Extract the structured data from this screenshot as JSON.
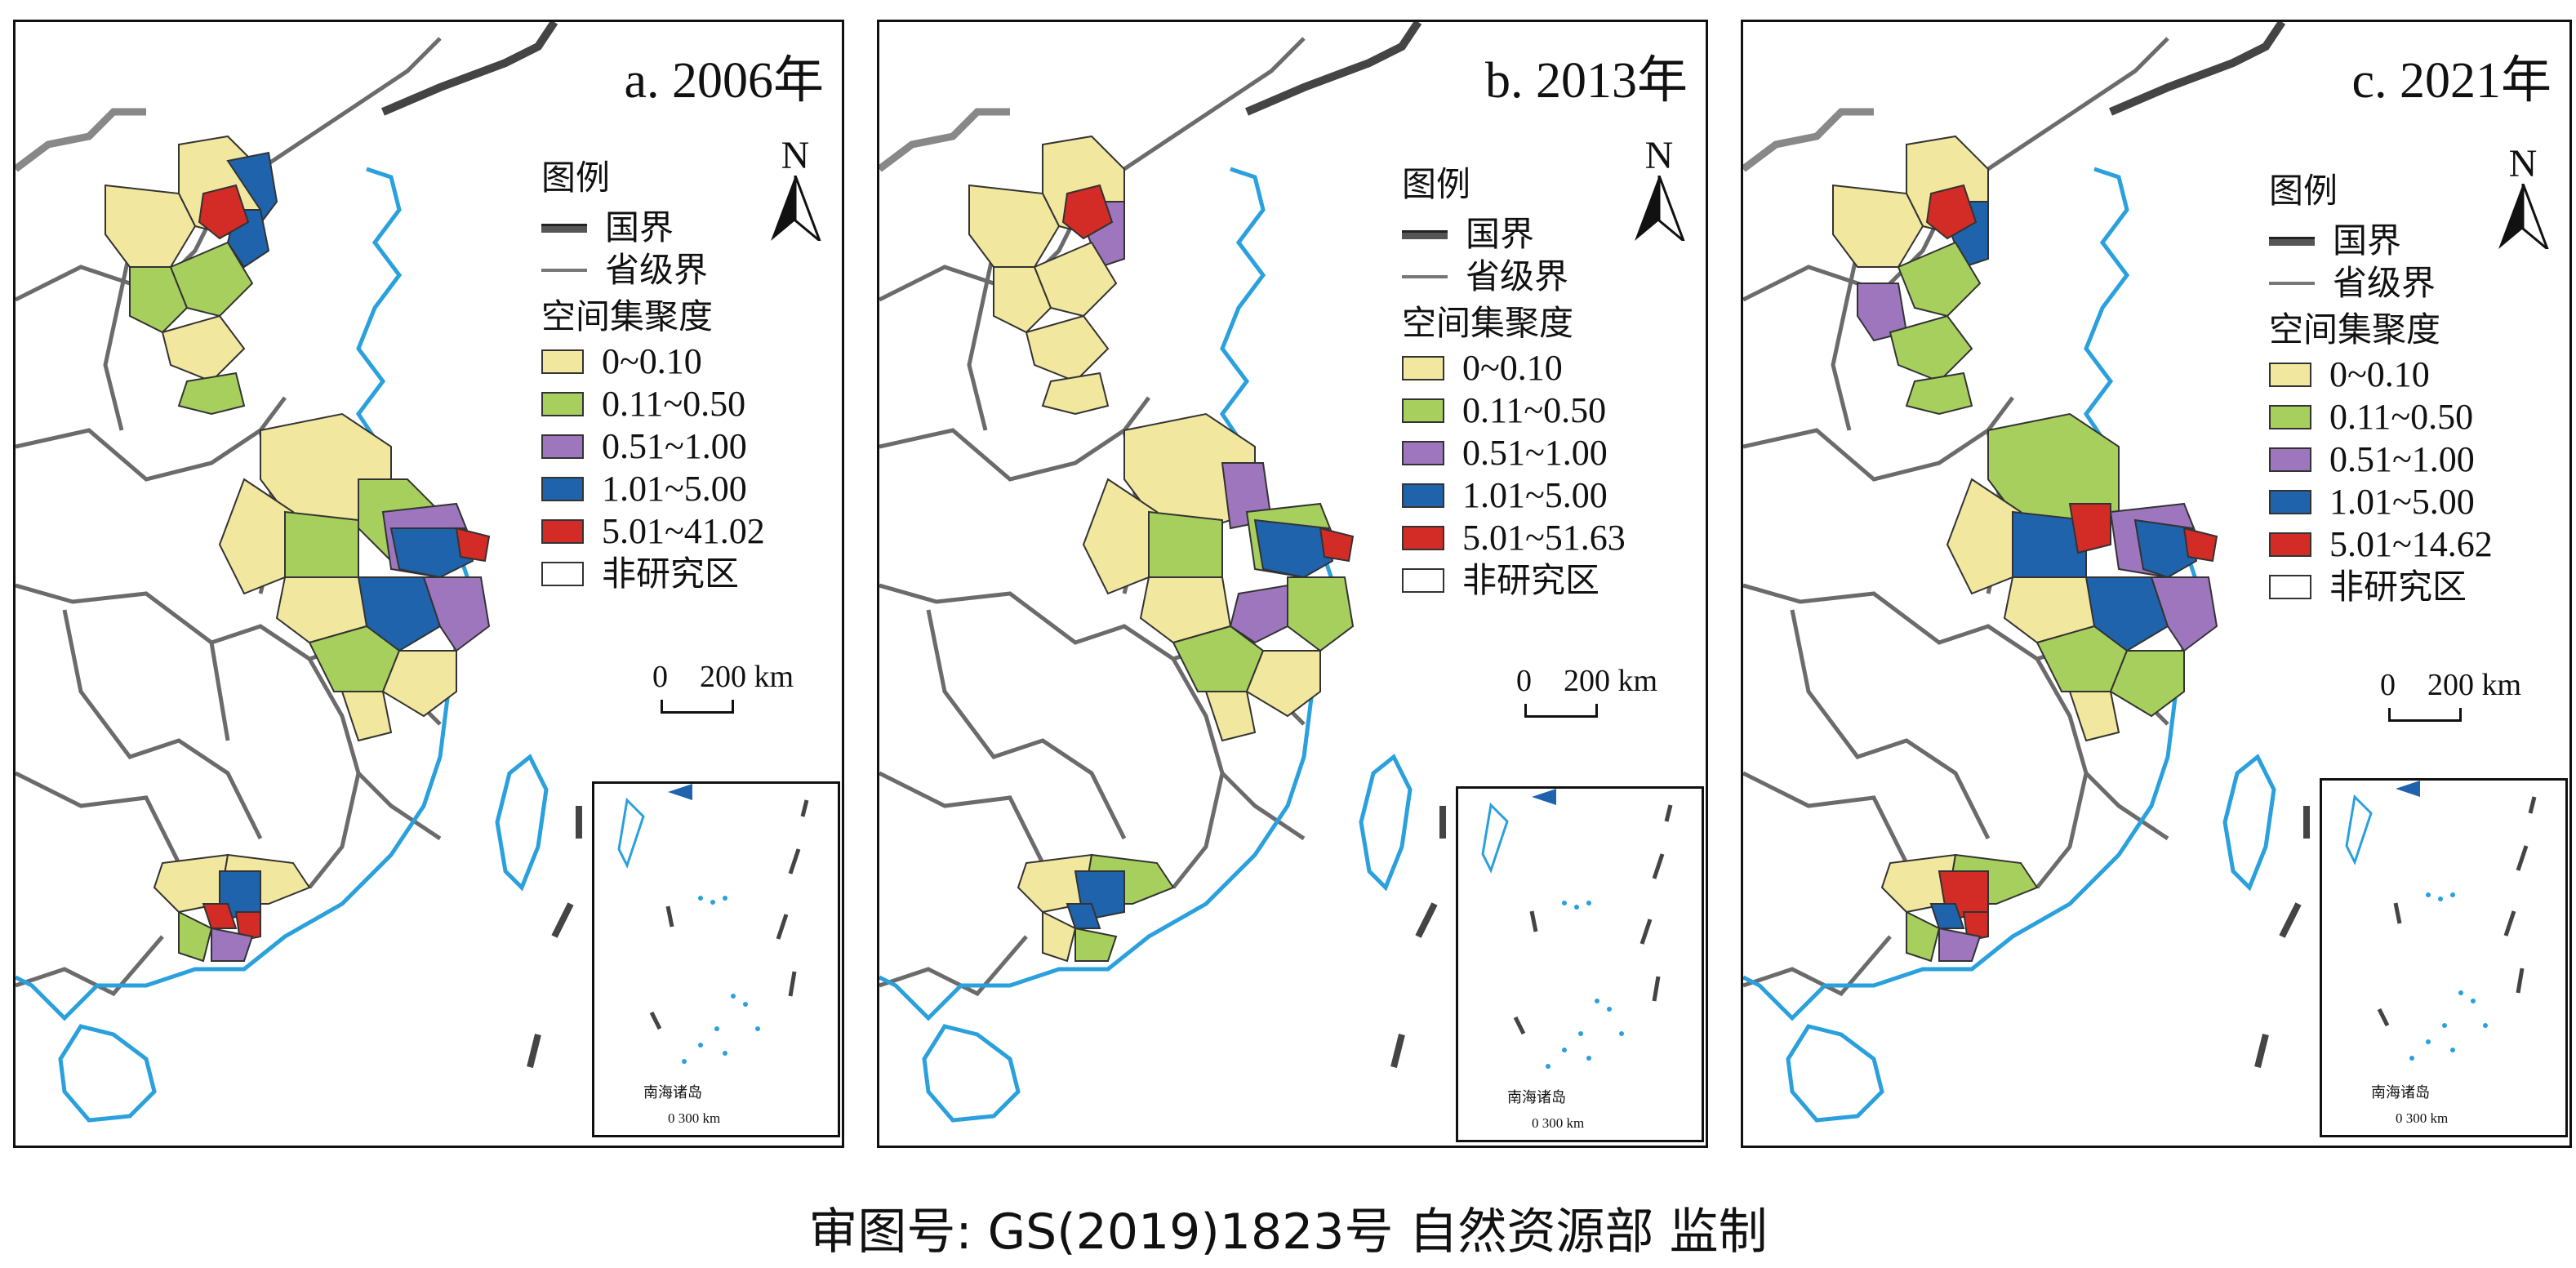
{
  "panels": [
    {
      "title": "a. 2006年",
      "legend_title": "图例",
      "national_border": "国界",
      "provincial_border": "省级界",
      "agg_title": "空间集聚度",
      "classes": [
        "0~0.10",
        "0.11~0.50",
        "0.51~1.00",
        "1.01~5.00",
        "5.01~41.02"
      ],
      "non_study": "非研究区",
      "north": "N",
      "scale_zero": "0",
      "scale_label": "200 km",
      "inset_caption": "南海诸岛",
      "inset_zero": "0",
      "inset_scale": "300 km"
    },
    {
      "title": "b. 2013年",
      "legend_title": "图例",
      "national_border": "国界",
      "provincial_border": "省级界",
      "agg_title": "空间集聚度",
      "classes": [
        "0~0.10",
        "0.11~0.50",
        "0.51~1.00",
        "1.01~5.00",
        "5.01~51.63"
      ],
      "non_study": "非研究区",
      "north": "N",
      "scale_zero": "0",
      "scale_label": "200 km",
      "inset_caption": "南海诸岛",
      "inset_zero": "0",
      "inset_scale": "300 km"
    },
    {
      "title": "c. 2021年",
      "legend_title": "图例",
      "national_border": "国界",
      "provincial_border": "省级界",
      "agg_title": "空间集聚度",
      "classes": [
        "0~0.10",
        "0.11~0.50",
        "0.51~1.00",
        "1.01~5.00",
        "5.01~14.62"
      ],
      "non_study": "非研究区",
      "north": "N",
      "scale_zero": "0",
      "scale_label": "200 km",
      "inset_caption": "南海诸岛",
      "inset_zero": "0",
      "inset_scale": "300 km"
    }
  ],
  "colors": {
    "class_0": "#f1e79e",
    "class_1": "#a7cf5d",
    "class_2": "#9d76be",
    "class_3": "#1f63ad",
    "class_4": "#d32b25",
    "coast": "#2aa0dc",
    "province_line": "#6b6b6b",
    "national_line": "#444444"
  },
  "caption": "审图号: GS(2019)1823号 自然资源部 监制"
}
